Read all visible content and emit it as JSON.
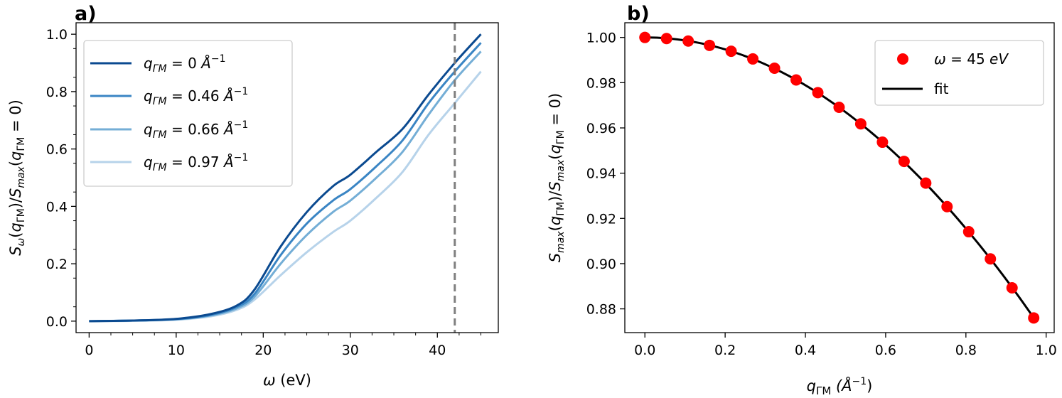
{
  "chart_data": [
    {
      "panel_label": "a)",
      "type": "line",
      "xlabel_symbol": "ω",
      "xlabel_unit": "(eV)",
      "ylabel_text": "S_ω(q_ΓM)/S_max(q_ΓM = 0)",
      "xlim": [
        -1.5,
        47
      ],
      "ylim": [
        -0.04,
        1.04
      ],
      "x_ticks": [
        0,
        10,
        20,
        30,
        40
      ],
      "x_tick_labels": [
        "0",
        "10",
        "20",
        "30",
        "40"
      ],
      "y_ticks": [
        0.0,
        0.2,
        0.4,
        0.6,
        0.8,
        1.0
      ],
      "y_tick_labels": [
        "0.0",
        "0.2",
        "0.4",
        "0.6",
        "0.8",
        "1.0"
      ],
      "vline": {
        "x": 42,
        "color": "#7f7f7f",
        "style": "dashed"
      },
      "legend_position": "top-left",
      "x": [
        0,
        5,
        10,
        14,
        17,
        19,
        22,
        25,
        28,
        30,
        33,
        36,
        39,
        42,
        45
      ],
      "series": [
        {
          "name": "q_ΓM = 0 Å^-1",
          "q_value": "0",
          "color": "#0b4a90",
          "values": [
            0,
            0.002,
            0.008,
            0.025,
            0.055,
            0.11,
            0.26,
            0.38,
            0.47,
            0.51,
            0.59,
            0.67,
            0.79,
            0.9,
            1.0
          ]
        },
        {
          "name": "q_ΓM = 0.46 Å^-1",
          "q_value": "0.46",
          "color": "#3a85c4",
          "values": [
            0,
            0.002,
            0.007,
            0.022,
            0.05,
            0.095,
            0.23,
            0.34,
            0.42,
            0.46,
            0.54,
            0.63,
            0.76,
            0.87,
            0.97
          ]
        },
        {
          "name": "q_ΓM = 0.66 Å^-1",
          "q_value": "0.66",
          "color": "#74aed6",
          "values": [
            0,
            0.002,
            0.006,
            0.02,
            0.045,
            0.085,
            0.2,
            0.3,
            0.38,
            0.42,
            0.5,
            0.59,
            0.72,
            0.84,
            0.94
          ]
        },
        {
          "name": "q_ΓM = 0.97 Å^-1",
          "q_value": "0.97",
          "color": "#b7d3ea",
          "values": [
            0,
            0.001,
            0.005,
            0.017,
            0.04,
            0.075,
            0.16,
            0.24,
            0.31,
            0.35,
            0.43,
            0.52,
            0.65,
            0.76,
            0.87
          ]
        }
      ]
    },
    {
      "panel_label": "b)",
      "type": "scatter",
      "xlabel_symbol": "q",
      "xlabel_sub": "ΓM",
      "xlabel_unit": "(Å",
      "xlabel_exp": "−1",
      "xlabel_close": ")",
      "ylabel_text": "S_max(q_ΓM)/S_max(q_ΓM = 0)",
      "xlim": [
        -0.05,
        1.02
      ],
      "ylim": [
        0.8695,
        1.0065
      ],
      "x_ticks": [
        0.0,
        0.2,
        0.4,
        0.6,
        0.8,
        1.0
      ],
      "x_tick_labels": [
        "0.0",
        "0.2",
        "0.4",
        "0.6",
        "0.8",
        "1.0"
      ],
      "y_ticks": [
        0.88,
        0.9,
        0.92,
        0.94,
        0.96,
        0.98,
        1.0
      ],
      "y_tick_labels": [
        "0.88",
        "0.90",
        "0.92",
        "0.94",
        "0.96",
        "0.98",
        "1.00"
      ],
      "legend_position": "top-right",
      "points": {
        "name": "ω = 45 eV",
        "color": "#ff0000",
        "x": [
          0.0,
          0.054,
          0.108,
          0.161,
          0.215,
          0.269,
          0.323,
          0.377,
          0.431,
          0.484,
          0.538,
          0.592,
          0.646,
          0.7,
          0.753,
          0.807,
          0.861,
          0.915,
          0.969
        ],
        "y": [
          1.0,
          0.9995,
          0.9984,
          0.9965,
          0.9939,
          0.9905,
          0.9864,
          0.9812,
          0.9756,
          0.9691,
          0.9618,
          0.9537,
          0.9452,
          0.9356,
          0.9252,
          0.9141,
          0.9021,
          0.8893,
          0.876
        ]
      },
      "fit": {
        "name": "fit",
        "color": "#000000",
        "model": "1 - 0.132*q^2"
      }
    }
  ]
}
